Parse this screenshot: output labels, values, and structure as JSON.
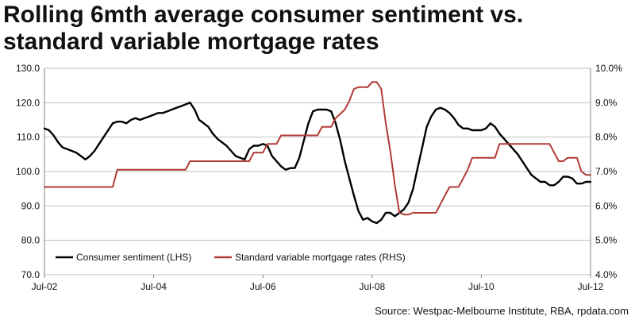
{
  "title": "Rolling 6mth average consumer sentiment vs. standard variable mortgage rates",
  "source": "Source: Westpac-Melbourne Institute, RBA, rpdata.com",
  "chart_data": {
    "type": "line",
    "title": "Rolling 6mth average consumer sentiment vs. standard variable mortgage rates",
    "x_range": [
      "2002-07",
      "2012-07"
    ],
    "x_ticks": [
      "Jul-02",
      "Jul-04",
      "Jul-06",
      "Jul-08",
      "Jul-10",
      "Jul-12"
    ],
    "y_left": {
      "range": [
        70,
        130
      ],
      "ticks": [
        "70.0",
        "80.0",
        "90.0",
        "100.0",
        "110.0",
        "120.0",
        "130.0"
      ]
    },
    "y_right": {
      "range": [
        4.0,
        10.0
      ],
      "ticks": [
        "4.0%",
        "5.0%",
        "6.0%",
        "7.0%",
        "8.0%",
        "9.0%",
        "10.0%"
      ]
    },
    "grid": "horizontal",
    "legend_position": "bottom-left",
    "colors": {
      "sentiment": "#000000",
      "mortgage": "#b03a38",
      "grid": "#bfbfbf",
      "axis": "#7f7f7f"
    },
    "series": [
      {
        "name": "Consumer sentiment (LHS)",
        "axis": "left",
        "points": [
          [
            "2002-07",
            112.5
          ],
          [
            "2002-08",
            112.0
          ],
          [
            "2002-09",
            110.5
          ],
          [
            "2002-10",
            108.5
          ],
          [
            "2002-11",
            107.0
          ],
          [
            "2002-12",
            106.5
          ],
          [
            "2003-01",
            106.0
          ],
          [
            "2003-02",
            105.5
          ],
          [
            "2003-03",
            104.5
          ],
          [
            "2003-04",
            103.5
          ],
          [
            "2003-05",
            104.5
          ],
          [
            "2003-06",
            106.0
          ],
          [
            "2003-07",
            108.0
          ],
          [
            "2003-08",
            110.0
          ],
          [
            "2003-09",
            112.0
          ],
          [
            "2003-10",
            114.0
          ],
          [
            "2003-11",
            114.5
          ],
          [
            "2003-12",
            114.5
          ],
          [
            "2004-01",
            114.0
          ],
          [
            "2004-02",
            115.0
          ],
          [
            "2004-03",
            115.5
          ],
          [
            "2004-04",
            115.0
          ],
          [
            "2004-05",
            115.5
          ],
          [
            "2004-06",
            116.0
          ],
          [
            "2004-07",
            116.5
          ],
          [
            "2004-08",
            117.0
          ],
          [
            "2004-09",
            117.0
          ],
          [
            "2004-10",
            117.5
          ],
          [
            "2004-11",
            118.0
          ],
          [
            "2004-12",
            118.5
          ],
          [
            "2005-01",
            119.0
          ],
          [
            "2005-02",
            119.5
          ],
          [
            "2005-03",
            120.0
          ],
          [
            "2005-04",
            118.0
          ],
          [
            "2005-05",
            115.0
          ],
          [
            "2005-06",
            114.0
          ],
          [
            "2005-07",
            113.0
          ],
          [
            "2005-08",
            111.0
          ],
          [
            "2005-09",
            109.5
          ],
          [
            "2005-10",
            108.5
          ],
          [
            "2005-11",
            107.5
          ],
          [
            "2005-12",
            106.0
          ],
          [
            "2006-01",
            104.5
          ],
          [
            "2006-02",
            104.0
          ],
          [
            "2006-03",
            103.5
          ],
          [
            "2006-04",
            106.5
          ],
          [
            "2006-05",
            107.5
          ],
          [
            "2006-06",
            107.5
          ],
          [
            "2006-07",
            108.0
          ],
          [
            "2006-08",
            107.5
          ],
          [
            "2006-09",
            104.5
          ],
          [
            "2006-10",
            103.0
          ],
          [
            "2006-11",
            101.5
          ],
          [
            "2006-12",
            100.5
          ],
          [
            "2007-01",
            101.0
          ],
          [
            "2007-02",
            101.0
          ],
          [
            "2007-03",
            104.0
          ],
          [
            "2007-04",
            109.0
          ],
          [
            "2007-05",
            114.0
          ],
          [
            "2007-06",
            117.5
          ],
          [
            "2007-07",
            118.0
          ],
          [
            "2007-08",
            118.0
          ],
          [
            "2007-09",
            118.0
          ],
          [
            "2007-10",
            117.5
          ],
          [
            "2007-11",
            114.0
          ],
          [
            "2007-12",
            109.0
          ],
          [
            "2008-01",
            103.0
          ],
          [
            "2008-02",
            98.0
          ],
          [
            "2008-03",
            93.0
          ],
          [
            "2008-04",
            88.5
          ],
          [
            "2008-05",
            86.0
          ],
          [
            "2008-06",
            86.5
          ],
          [
            "2008-07",
            85.5
          ],
          [
            "2008-08",
            85.0
          ],
          [
            "2008-09",
            86.0
          ],
          [
            "2008-10",
            88.0
          ],
          [
            "2008-11",
            88.0
          ],
          [
            "2008-12",
            87.0
          ],
          [
            "2009-01",
            88.0
          ],
          [
            "2009-02",
            89.0
          ],
          [
            "2009-03",
            91.0
          ],
          [
            "2009-04",
            95.0
          ],
          [
            "2009-05",
            101.0
          ],
          [
            "2009-06",
            107.0
          ],
          [
            "2009-07",
            113.0
          ],
          [
            "2009-08",
            116.0
          ],
          [
            "2009-09",
            118.0
          ],
          [
            "2009-10",
            118.5
          ],
          [
            "2009-11",
            118.0
          ],
          [
            "2009-12",
            117.0
          ],
          [
            "2010-01",
            115.5
          ],
          [
            "2010-02",
            113.5
          ],
          [
            "2010-03",
            112.5
          ],
          [
            "2010-04",
            112.5
          ],
          [
            "2010-05",
            112.0
          ],
          [
            "2010-06",
            112.0
          ],
          [
            "2010-07",
            112.0
          ],
          [
            "2010-08",
            112.5
          ],
          [
            "2010-09",
            114.0
          ],
          [
            "2010-10",
            113.0
          ],
          [
            "2010-11",
            111.0
          ],
          [
            "2010-12",
            109.5
          ],
          [
            "2011-01",
            108.0
          ],
          [
            "2011-02",
            106.5
          ],
          [
            "2011-03",
            105.0
          ],
          [
            "2011-04",
            103.0
          ],
          [
            "2011-05",
            101.0
          ],
          [
            "2011-06",
            99.0
          ],
          [
            "2011-07",
            98.0
          ],
          [
            "2011-08",
            97.0
          ],
          [
            "2011-09",
            97.0
          ],
          [
            "2011-10",
            96.0
          ],
          [
            "2011-11",
            96.0
          ],
          [
            "2011-12",
            97.0
          ],
          [
            "2012-01",
            98.5
          ],
          [
            "2012-02",
            98.5
          ],
          [
            "2012-03",
            98.0
          ],
          [
            "2012-04",
            96.5
          ],
          [
            "2012-05",
            96.5
          ],
          [
            "2012-06",
            97.0
          ],
          [
            "2012-07",
            97.0
          ]
        ]
      },
      {
        "name": "Standard variable mortgage rates (RHS)",
        "axis": "right",
        "points": [
          [
            "2002-07",
            6.55
          ],
          [
            "2003-10",
            6.55
          ],
          [
            "2003-11",
            7.05
          ],
          [
            "2005-02",
            7.05
          ],
          [
            "2005-03",
            7.3
          ],
          [
            "2006-04",
            7.3
          ],
          [
            "2006-05",
            7.55
          ],
          [
            "2006-07",
            7.55
          ],
          [
            "2006-08",
            7.8
          ],
          [
            "2006-10",
            7.8
          ],
          [
            "2006-11",
            8.05
          ],
          [
            "2007-07",
            8.05
          ],
          [
            "2007-08",
            8.3
          ],
          [
            "2007-10",
            8.3
          ],
          [
            "2007-11",
            8.55
          ],
          [
            "2008-01",
            8.8
          ],
          [
            "2008-02",
            9.05
          ],
          [
            "2008-03",
            9.4
          ],
          [
            "2008-04",
            9.45
          ],
          [
            "2008-06",
            9.45
          ],
          [
            "2008-07",
            9.6
          ],
          [
            "2008-08",
            9.6
          ],
          [
            "2008-09",
            9.4
          ],
          [
            "2008-10",
            8.4
          ],
          [
            "2008-11",
            7.6
          ],
          [
            "2008-12",
            6.6
          ],
          [
            "2009-01",
            5.8
          ],
          [
            "2009-02",
            5.75
          ],
          [
            "2009-03",
            5.75
          ],
          [
            "2009-04",
            5.8
          ],
          [
            "2009-09",
            5.8
          ],
          [
            "2009-10",
            6.05
          ],
          [
            "2009-11",
            6.3
          ],
          [
            "2009-12",
            6.55
          ],
          [
            "2010-02",
            6.55
          ],
          [
            "2010-03",
            6.8
          ],
          [
            "2010-04",
            7.05
          ],
          [
            "2010-05",
            7.4
          ],
          [
            "2010-10",
            7.4
          ],
          [
            "2010-11",
            7.8
          ],
          [
            "2011-10",
            7.8
          ],
          [
            "2011-11",
            7.55
          ],
          [
            "2011-12",
            7.3
          ],
          [
            "2012-01",
            7.3
          ],
          [
            "2012-02",
            7.4
          ],
          [
            "2012-04",
            7.4
          ],
          [
            "2012-05",
            7.0
          ],
          [
            "2012-06",
            6.9
          ],
          [
            "2012-07",
            6.9
          ]
        ]
      }
    ]
  }
}
